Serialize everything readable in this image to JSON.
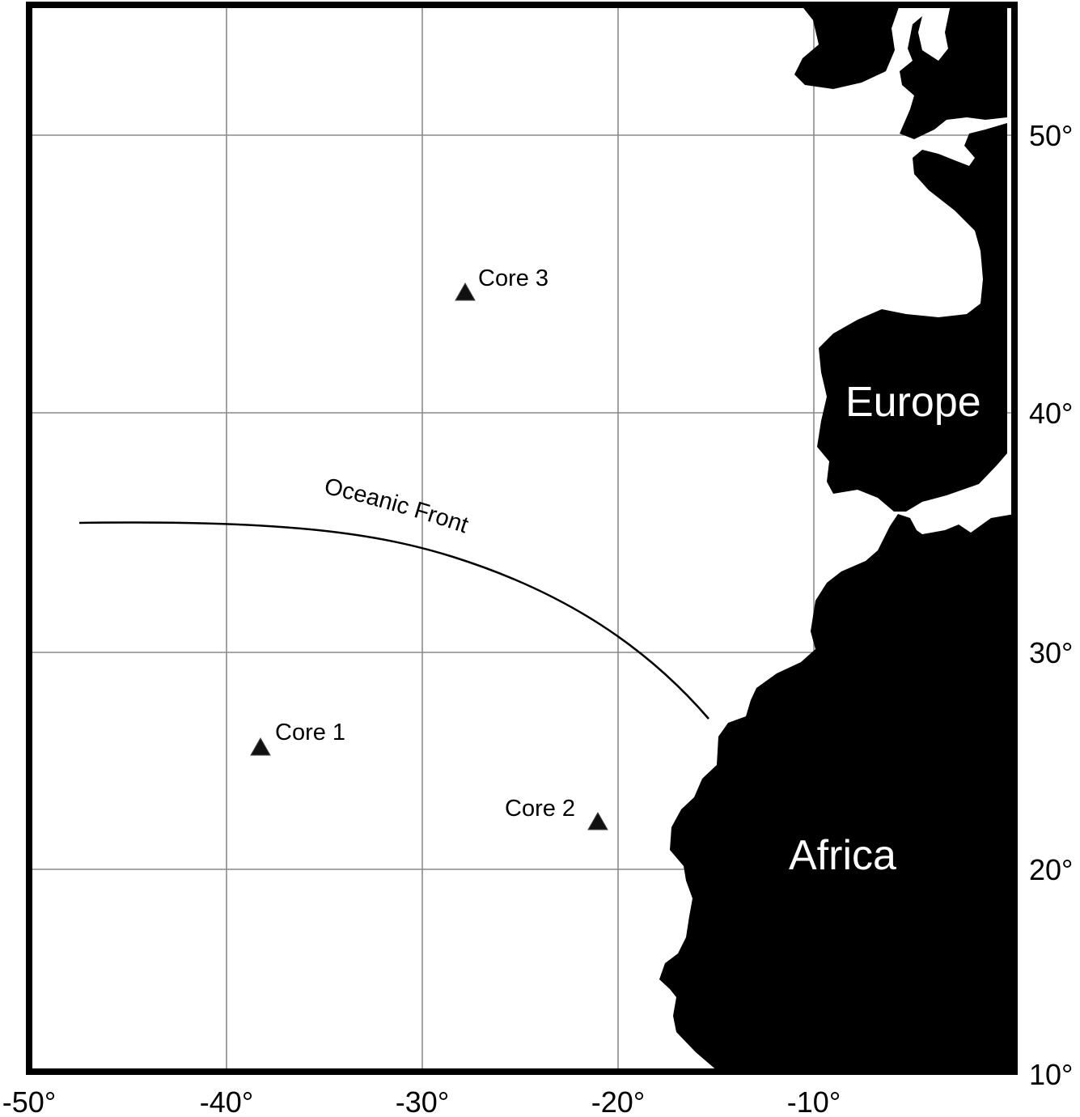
{
  "map": {
    "x_axis_labels": [
      "-50°",
      "-40°",
      "-30°",
      "-20°",
      "-10°"
    ],
    "y_axis_labels": [
      "50°",
      "40°",
      "30°",
      "20°",
      "10°"
    ],
    "regions": {
      "europe": "Europe",
      "africa": "Africa"
    },
    "front": {
      "label": "Oceanic Front"
    },
    "cores": [
      {
        "label": "Core 1"
      },
      {
        "label": "Core 2"
      },
      {
        "label": "Core 3"
      }
    ],
    "colors": {
      "land": "#000000",
      "ocean": "#ffffff",
      "grid": "#8a8a8a",
      "frame": "#000000"
    }
  }
}
